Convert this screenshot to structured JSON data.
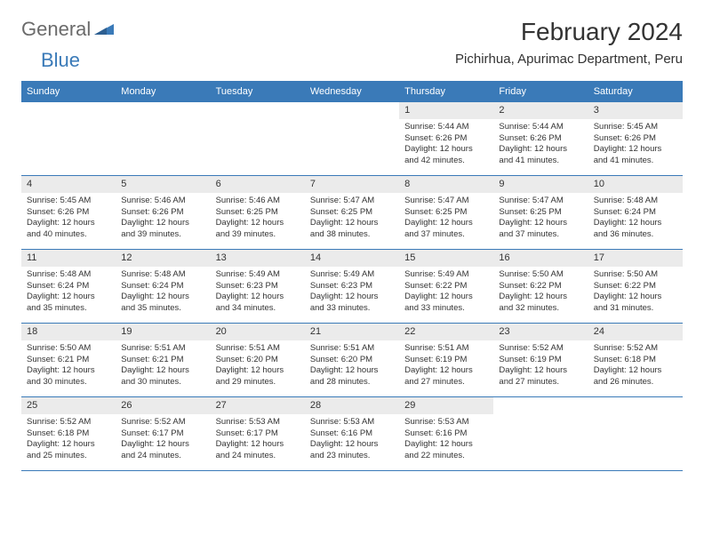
{
  "logo": {
    "part1": "General",
    "part2": "Blue"
  },
  "title": "February 2024",
  "location": "Pichirhua, Apurimac Department, Peru",
  "header_bg": "#3a7ab8",
  "daynum_bg": "#ebebeb",
  "weekdays": [
    "Sunday",
    "Monday",
    "Tuesday",
    "Wednesday",
    "Thursday",
    "Friday",
    "Saturday"
  ],
  "weeks": [
    [
      {
        "empty": true
      },
      {
        "empty": true
      },
      {
        "empty": true
      },
      {
        "empty": true
      },
      {
        "n": "1",
        "sunrise": "Sunrise: 5:44 AM",
        "sunset": "Sunset: 6:26 PM",
        "day1": "Daylight: 12 hours",
        "day2": "and 42 minutes."
      },
      {
        "n": "2",
        "sunrise": "Sunrise: 5:44 AM",
        "sunset": "Sunset: 6:26 PM",
        "day1": "Daylight: 12 hours",
        "day2": "and 41 minutes."
      },
      {
        "n": "3",
        "sunrise": "Sunrise: 5:45 AM",
        "sunset": "Sunset: 6:26 PM",
        "day1": "Daylight: 12 hours",
        "day2": "and 41 minutes."
      }
    ],
    [
      {
        "n": "4",
        "sunrise": "Sunrise: 5:45 AM",
        "sunset": "Sunset: 6:26 PM",
        "day1": "Daylight: 12 hours",
        "day2": "and 40 minutes."
      },
      {
        "n": "5",
        "sunrise": "Sunrise: 5:46 AM",
        "sunset": "Sunset: 6:26 PM",
        "day1": "Daylight: 12 hours",
        "day2": "and 39 minutes."
      },
      {
        "n": "6",
        "sunrise": "Sunrise: 5:46 AM",
        "sunset": "Sunset: 6:25 PM",
        "day1": "Daylight: 12 hours",
        "day2": "and 39 minutes."
      },
      {
        "n": "7",
        "sunrise": "Sunrise: 5:47 AM",
        "sunset": "Sunset: 6:25 PM",
        "day1": "Daylight: 12 hours",
        "day2": "and 38 minutes."
      },
      {
        "n": "8",
        "sunrise": "Sunrise: 5:47 AM",
        "sunset": "Sunset: 6:25 PM",
        "day1": "Daylight: 12 hours",
        "day2": "and 37 minutes."
      },
      {
        "n": "9",
        "sunrise": "Sunrise: 5:47 AM",
        "sunset": "Sunset: 6:25 PM",
        "day1": "Daylight: 12 hours",
        "day2": "and 37 minutes."
      },
      {
        "n": "10",
        "sunrise": "Sunrise: 5:48 AM",
        "sunset": "Sunset: 6:24 PM",
        "day1": "Daylight: 12 hours",
        "day2": "and 36 minutes."
      }
    ],
    [
      {
        "n": "11",
        "sunrise": "Sunrise: 5:48 AM",
        "sunset": "Sunset: 6:24 PM",
        "day1": "Daylight: 12 hours",
        "day2": "and 35 minutes."
      },
      {
        "n": "12",
        "sunrise": "Sunrise: 5:48 AM",
        "sunset": "Sunset: 6:24 PM",
        "day1": "Daylight: 12 hours",
        "day2": "and 35 minutes."
      },
      {
        "n": "13",
        "sunrise": "Sunrise: 5:49 AM",
        "sunset": "Sunset: 6:23 PM",
        "day1": "Daylight: 12 hours",
        "day2": "and 34 minutes."
      },
      {
        "n": "14",
        "sunrise": "Sunrise: 5:49 AM",
        "sunset": "Sunset: 6:23 PM",
        "day1": "Daylight: 12 hours",
        "day2": "and 33 minutes."
      },
      {
        "n": "15",
        "sunrise": "Sunrise: 5:49 AM",
        "sunset": "Sunset: 6:22 PM",
        "day1": "Daylight: 12 hours",
        "day2": "and 33 minutes."
      },
      {
        "n": "16",
        "sunrise": "Sunrise: 5:50 AM",
        "sunset": "Sunset: 6:22 PM",
        "day1": "Daylight: 12 hours",
        "day2": "and 32 minutes."
      },
      {
        "n": "17",
        "sunrise": "Sunrise: 5:50 AM",
        "sunset": "Sunset: 6:22 PM",
        "day1": "Daylight: 12 hours",
        "day2": "and 31 minutes."
      }
    ],
    [
      {
        "n": "18",
        "sunrise": "Sunrise: 5:50 AM",
        "sunset": "Sunset: 6:21 PM",
        "day1": "Daylight: 12 hours",
        "day2": "and 30 minutes."
      },
      {
        "n": "19",
        "sunrise": "Sunrise: 5:51 AM",
        "sunset": "Sunset: 6:21 PM",
        "day1": "Daylight: 12 hours",
        "day2": "and 30 minutes."
      },
      {
        "n": "20",
        "sunrise": "Sunrise: 5:51 AM",
        "sunset": "Sunset: 6:20 PM",
        "day1": "Daylight: 12 hours",
        "day2": "and 29 minutes."
      },
      {
        "n": "21",
        "sunrise": "Sunrise: 5:51 AM",
        "sunset": "Sunset: 6:20 PM",
        "day1": "Daylight: 12 hours",
        "day2": "and 28 minutes."
      },
      {
        "n": "22",
        "sunrise": "Sunrise: 5:51 AM",
        "sunset": "Sunset: 6:19 PM",
        "day1": "Daylight: 12 hours",
        "day2": "and 27 minutes."
      },
      {
        "n": "23",
        "sunrise": "Sunrise: 5:52 AM",
        "sunset": "Sunset: 6:19 PM",
        "day1": "Daylight: 12 hours",
        "day2": "and 27 minutes."
      },
      {
        "n": "24",
        "sunrise": "Sunrise: 5:52 AM",
        "sunset": "Sunset: 6:18 PM",
        "day1": "Daylight: 12 hours",
        "day2": "and 26 minutes."
      }
    ],
    [
      {
        "n": "25",
        "sunrise": "Sunrise: 5:52 AM",
        "sunset": "Sunset: 6:18 PM",
        "day1": "Daylight: 12 hours",
        "day2": "and 25 minutes."
      },
      {
        "n": "26",
        "sunrise": "Sunrise: 5:52 AM",
        "sunset": "Sunset: 6:17 PM",
        "day1": "Daylight: 12 hours",
        "day2": "and 24 minutes."
      },
      {
        "n": "27",
        "sunrise": "Sunrise: 5:53 AM",
        "sunset": "Sunset: 6:17 PM",
        "day1": "Daylight: 12 hours",
        "day2": "and 24 minutes."
      },
      {
        "n": "28",
        "sunrise": "Sunrise: 5:53 AM",
        "sunset": "Sunset: 6:16 PM",
        "day1": "Daylight: 12 hours",
        "day2": "and 23 minutes."
      },
      {
        "n": "29",
        "sunrise": "Sunrise: 5:53 AM",
        "sunset": "Sunset: 6:16 PM",
        "day1": "Daylight: 12 hours",
        "day2": "and 22 minutes."
      },
      {
        "empty": true
      },
      {
        "empty": true
      }
    ]
  ]
}
